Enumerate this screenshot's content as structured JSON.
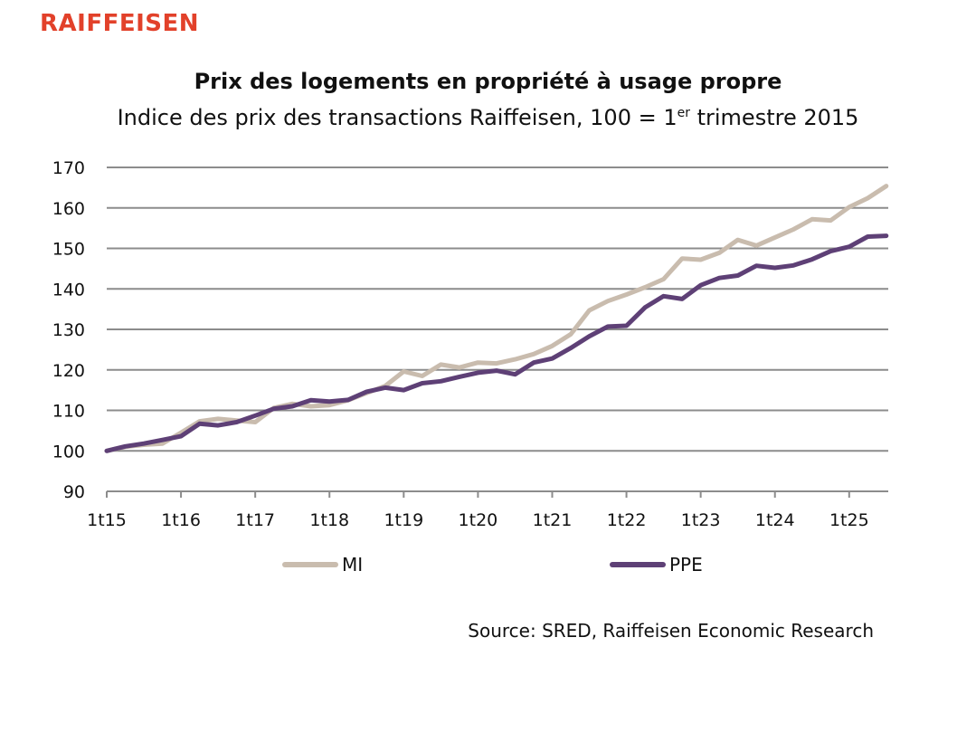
{
  "brand": {
    "logo_text": "RAIFFEISEN",
    "color": "#e2412a"
  },
  "chart_data": {
    "type": "line",
    "title": "Prix des logements en propriété à usage propre",
    "subtitle_pre": "Indice des prix des transactions Raiffeisen, 100 = 1",
    "subtitle_sup": "er",
    "subtitle_post": " trimestre 2015",
    "xlabel": "",
    "ylabel": "",
    "ylim": [
      90,
      170
    ],
    "yticks": [
      90,
      100,
      110,
      120,
      130,
      140,
      150,
      160,
      170
    ],
    "xtick_labels": [
      "1t15",
      "1t16",
      "1t17",
      "1t18",
      "1t19",
      "1t20",
      "1t21",
      "1t22",
      "1t23",
      "1t24",
      "1t25"
    ],
    "grid": true,
    "legend_position": "bottom",
    "x": [
      "1t15",
      "2t15",
      "3t15",
      "4t15",
      "1t16",
      "2t16",
      "3t16",
      "4t16",
      "1t17",
      "2t17",
      "3t17",
      "4t17",
      "1t18",
      "2t18",
      "3t18",
      "4t18",
      "1t19",
      "2t19",
      "3t19",
      "4t19",
      "1t20",
      "2t20",
      "3t20",
      "4t20",
      "1t21",
      "2t21",
      "3t21",
      "4t21",
      "1t22",
      "2t22",
      "3t22",
      "4t22",
      "1t23",
      "2t23",
      "3t23",
      "4t23",
      "1t24",
      "2t24",
      "3t24",
      "4t24",
      "1t25",
      "2t25",
      "3t25"
    ],
    "series": [
      {
        "name": "MI",
        "color": "#c9bcae",
        "values": [
          100.0,
          101.0,
          101.5,
          101.8,
          104.5,
          107.3,
          107.9,
          107.5,
          107.1,
          110.6,
          111.6,
          111.0,
          111.3,
          112.5,
          114.3,
          116.0,
          119.6,
          118.5,
          121.3,
          120.6,
          121.8,
          121.6,
          122.6,
          123.9,
          125.9,
          128.8,
          134.7,
          137.0,
          138.6,
          140.4,
          142.4,
          147.5,
          147.2,
          148.9,
          152.1,
          150.7,
          152.7,
          154.7,
          157.2,
          156.9,
          160.2,
          162.4,
          165.4
        ]
      },
      {
        "name": "PPE",
        "color": "#5e4076",
        "values": [
          100.0,
          101.1,
          101.8,
          102.7,
          103.6,
          106.7,
          106.3,
          107.1,
          108.7,
          110.4,
          111.0,
          112.5,
          112.2,
          112.6,
          114.6,
          115.6,
          115.0,
          116.7,
          117.2,
          118.3,
          119.3,
          119.8,
          118.9,
          121.8,
          122.8,
          125.4,
          128.3,
          130.7,
          130.9,
          135.4,
          138.2,
          137.5,
          140.9,
          142.7,
          143.3,
          145.7,
          145.2,
          145.8,
          147.3,
          149.3,
          150.4,
          152.9,
          153.1
        ]
      }
    ]
  },
  "source": "Source: SRED, Raiffeisen Economic Research"
}
